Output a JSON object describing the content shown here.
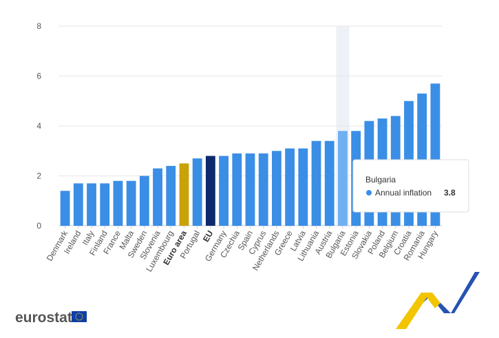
{
  "chart_data": {
    "type": "bar",
    "categories": [
      "Denmark",
      "Ireland",
      "Italy",
      "Finland",
      "France",
      "Malta",
      "Sweden",
      "Slovenia",
      "Luxembourg",
      "Euro area",
      "Portugal",
      "EU",
      "Germany",
      "Czechia",
      "Spain",
      "Cyprus",
      "Netherlands",
      "Greece",
      "Latvia",
      "Lithuania",
      "Austria",
      "Bulgaria",
      "Estonia",
      "Slovakia",
      "Poland",
      "Belgium",
      "Croatia",
      "Romania",
      "Hungary"
    ],
    "series": [
      {
        "name": "Annual inflation",
        "color": "#3a8ee6",
        "values": [
          1.4,
          1.7,
          1.7,
          1.7,
          1.8,
          1.8,
          2.0,
          2.3,
          2.4,
          2.5,
          2.7,
          2.8,
          2.8,
          2.9,
          2.9,
          2.9,
          3.0,
          3.1,
          3.1,
          3.4,
          3.4,
          3.8,
          3.8,
          4.2,
          4.3,
          4.4,
          5.0,
          5.3,
          5.7
        ],
        "colors": [
          "#3a8ee6",
          "#3a8ee6",
          "#3a8ee6",
          "#3a8ee6",
          "#3a8ee6",
          "#3a8ee6",
          "#3a8ee6",
          "#3a8ee6",
          "#3a8ee6",
          "#c9a20a",
          "#3a8ee6",
          "#0e2a6e",
          "#3a8ee6",
          "#3a8ee6",
          "#3a8ee6",
          "#3a8ee6",
          "#3a8ee6",
          "#3a8ee6",
          "#3a8ee6",
          "#3a8ee6",
          "#3a8ee6",
          "#6fb0f2",
          "#3a8ee6",
          "#3a8ee6",
          "#3a8ee6",
          "#3a8ee6",
          "#3a8ee6",
          "#3a8ee6",
          "#3a8ee6"
        ]
      }
    ],
    "hover_index": 21,
    "ylim": [
      0,
      8
    ],
    "yticks": [
      0,
      2,
      4,
      6,
      8
    ],
    "grid": true,
    "logo": "eurostat"
  }
}
